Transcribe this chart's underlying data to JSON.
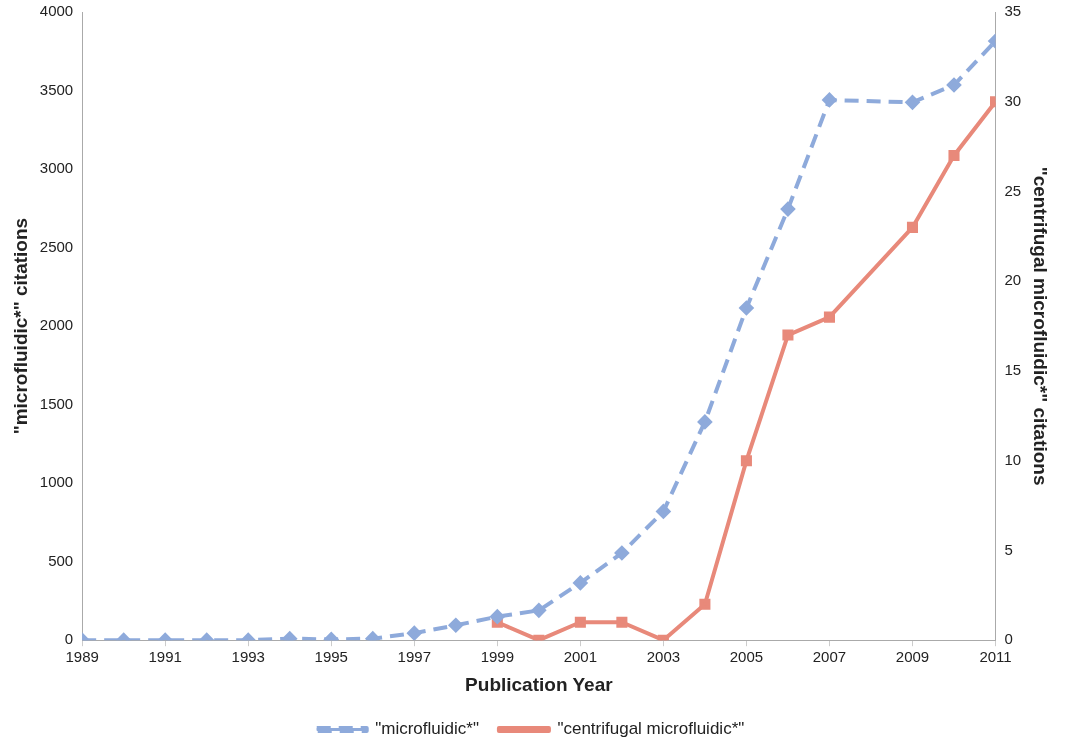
{
  "chart_data": {
    "type": "line",
    "xlabel": "Publication Year",
    "ylabel": "\"microfluidic*\" citations",
    "y2label": "\"centrifugal microfluidic*\" citations",
    "x": [
      1989,
      1990,
      1991,
      1992,
      1993,
      1994,
      1995,
      1996,
      1997,
      1998,
      1999,
      2000,
      2001,
      2002,
      2003,
      2004,
      2005,
      2006,
      2007,
      2008,
      2009,
      2010,
      2011
    ],
    "series": [
      {
        "name": "\"microfluidic*\"",
        "color": "#8eaadb",
        "line_style": "dashed",
        "marker": "diamond",
        "values": [
          0,
          0,
          0,
          0,
          0,
          10,
          5,
          10,
          45,
          95,
          150,
          190,
          365,
          555,
          820,
          1390,
          2115,
          2745,
          3440,
          null,
          3425,
          3535,
          3815
        ]
      },
      {
        "name": "\"centrifugal microfluidic*\"",
        "color": "#e8897a",
        "line_style": "solid",
        "marker": "square",
        "axis": "y2",
        "values": [
          null,
          null,
          null,
          null,
          null,
          null,
          null,
          null,
          null,
          null,
          1,
          0,
          1,
          1,
          0,
          2,
          10,
          17,
          18,
          null,
          23,
          27,
          30
        ]
      }
    ],
    "xlim": [
      1989,
      2011
    ],
    "xticks": [
      1989,
      1991,
      1993,
      1995,
      1997,
      1999,
      2001,
      2003,
      2005,
      2007,
      2009,
      2011
    ],
    "ylim": [
      0,
      4000
    ],
    "yticks": [
      0,
      500,
      1000,
      1500,
      2000,
      2500,
      3000,
      3500,
      4000
    ],
    "y2lim": [
      0,
      35
    ],
    "y2ticks": [
      0,
      5,
      10,
      15,
      20,
      25,
      30,
      35
    ],
    "grid": false,
    "legend": "bottom"
  }
}
